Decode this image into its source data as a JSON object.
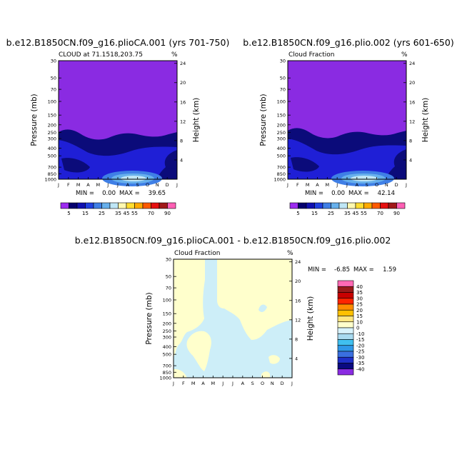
{
  "colors": {
    "purple": "#8a2be2",
    "navy": "#0b0b7a",
    "blue": "#1f1fd6",
    "light_blue": "#cdeef8",
    "cream": "#ffffcc"
  },
  "palette_top": [
    "#9d2bf0",
    "#05006e",
    "#1010b0",
    "#2040e0",
    "#3f7fe6",
    "#67b0ec",
    "#bfe6f6",
    "#fff8b0",
    "#ffdd30",
    "#ffaa00",
    "#ff5a00",
    "#e61010",
    "#a01818",
    "#ff5fb4"
  ],
  "palette_diff": [
    "#8a2be2",
    "#0a0a80",
    "#1f2fc8",
    "#3a6fe0",
    "#2f98e8",
    "#40c0f0",
    "#a8daf0",
    "#d8f2fb",
    "#ffffcc",
    "#ffe680",
    "#ffc000",
    "#ff8c00",
    "#ff2400",
    "#c80000",
    "#9a1a1a",
    "#ff69b4"
  ],
  "chart_data": [
    {
      "type": "heatmap",
      "title": "b.e12.B1850CN.f09_g16.plioCA.001 (yrs 701-750)",
      "subtitle": "CLOUD at 71.1518,203.75",
      "units": "%",
      "ylabel": "Pressure (mb)",
      "y2label": "Height (km)",
      "x_ticks": [
        "J",
        "F",
        "M",
        "A",
        "M",
        "J",
        "J",
        "A",
        "S",
        "O",
        "N",
        "D",
        "J"
      ],
      "y_ticks": [
        "30",
        "50",
        "70",
        "100",
        "150",
        "200",
        "250",
        "300",
        "400",
        "500",
        "700",
        "850",
        "1000"
      ],
      "y2_ticks": [
        "24",
        "20",
        "16",
        "12",
        "8",
        "4"
      ],
      "min_label": "MIN =",
      "min": "0.00",
      "max_label": "MAX =",
      "max": "39.65",
      "colorbar_labels": [
        "5",
        "15",
        "25",
        "35",
        "45",
        "55",
        "70",
        "90"
      ]
    },
    {
      "type": "heatmap",
      "title": "b.e12.B1850CN.f09_g16.plio.002 (yrs 601-650)",
      "subtitle": "Cloud Fraction",
      "units": "%",
      "ylabel": "Pressure (mb)",
      "y2label": "Height (km)",
      "x_ticks": [
        "J",
        "F",
        "M",
        "A",
        "M",
        "J",
        "J",
        "A",
        "S",
        "O",
        "N",
        "D",
        "J"
      ],
      "y_ticks": [
        "30",
        "50",
        "70",
        "100",
        "150",
        "200",
        "250",
        "300",
        "400",
        "500",
        "700",
        "850",
        "1000"
      ],
      "y2_ticks": [
        "24",
        "20",
        "16",
        "12",
        "8",
        "4"
      ],
      "min_label": "MIN =",
      "min": "0.00",
      "max_label": "MAX =",
      "max": "42.14",
      "colorbar_labels": [
        "5",
        "15",
        "25",
        "35",
        "45",
        "55",
        "70",
        "90"
      ]
    },
    {
      "type": "heatmap",
      "title": "b.e12.B1850CN.f09_g16.plioCA.001 - b.e12.B1850CN.f09_g16.plio.002",
      "subtitle": "Cloud Fraction",
      "units": "%",
      "ylabel": "Pressure (mb)",
      "y2label": "Height (km)",
      "x_ticks": [
        "J",
        "F",
        "M",
        "A",
        "M",
        "J",
        "J",
        "A",
        "S",
        "O",
        "N",
        "D",
        "J"
      ],
      "y_ticks": [
        "30",
        "50",
        "70",
        "100",
        "150",
        "200",
        "250",
        "300",
        "400",
        "500",
        "700",
        "850",
        "1000"
      ],
      "y2_ticks": [
        "24",
        "20",
        "16",
        "12",
        "8",
        "4"
      ],
      "min_label": "MIN =",
      "min": "-6.85",
      "max_label": "MAX =",
      "max": "1.59",
      "colorbar_labels": [
        "40",
        "35",
        "30",
        "25",
        "20",
        "15",
        "10",
        "0",
        "-10",
        "-15",
        "-20",
        "-25",
        "-30",
        "-35",
        "-40"
      ]
    }
  ]
}
